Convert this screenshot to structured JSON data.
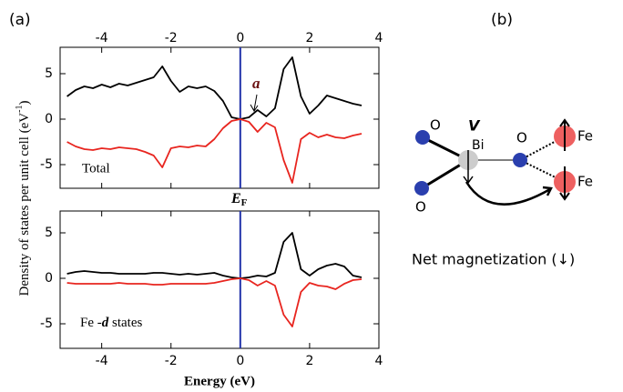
{
  "panel_labels": [
    "(a)",
    "(b)"
  ],
  "chart_data": [
    {
      "type": "line",
      "ylabel": [
        "Density of states per unit cell (eV",
        "-1",
        ")"
      ],
      "annotations": [
        "Total",
        "a"
      ],
      "ef_label": [
        "E",
        "F"
      ],
      "xtick_labels": "top",
      "vline": 0,
      "vline_color": "#2233aa",
      "x": [
        -5,
        -4.75,
        -4.5,
        -4.25,
        -4,
        -3.75,
        -3.5,
        -3.25,
        -3,
        -2.75,
        -2.5,
        -2.25,
        -2,
        -1.75,
        -1.5,
        -1.25,
        -1,
        -0.75,
        -0.5,
        -0.25,
        0,
        0.25,
        0.5,
        0.75,
        1,
        1.25,
        1.5,
        1.75,
        2,
        2.25,
        2.5,
        2.75,
        3,
        3.25,
        3.5
      ],
      "series": [
        {
          "color": "#000000",
          "values": [
            2.5,
            3.2,
            3.6,
            3.4,
            3.8,
            3.5,
            3.9,
            3.7,
            4.0,
            4.3,
            4.6,
            5.8,
            4.2,
            3.0,
            3.6,
            3.4,
            3.6,
            3.1,
            2.0,
            0.2,
            0,
            0.2,
            1.0,
            0.3,
            1.2,
            5.5,
            6.8,
            2.5,
            0.6,
            1.5,
            2.6,
            2.3,
            2.0,
            1.7,
            1.5
          ]
        },
        {
          "color": "#e8251f",
          "values": [
            -2.5,
            -3.0,
            -3.3,
            -3.4,
            -3.2,
            -3.3,
            -3.1,
            -3.2,
            -3.3,
            -3.6,
            -4.0,
            -5.3,
            -3.2,
            -3.0,
            -3.1,
            -2.9,
            -3.0,
            -2.2,
            -1.0,
            -0.2,
            0,
            -0.3,
            -1.4,
            -0.4,
            -0.9,
            -4.5,
            -7.0,
            -2.2,
            -1.5,
            -2.0,
            -1.7,
            -2.0,
            -2.1,
            -1.8,
            -1.6
          ]
        }
      ],
      "xlim": [
        -5.2,
        4
      ],
      "xticks": [
        -4,
        -2,
        0,
        2,
        4
      ],
      "ylim": [
        -7.6,
        7.9
      ],
      "yticks": [
        -5,
        0,
        5
      ]
    },
    {
      "type": "line",
      "xlabel": "Energy (eV)",
      "annotations": [
        [
          "Fe -",
          "d",
          " states"
        ]
      ],
      "xtick_labels": "bottom",
      "vline": 0,
      "vline_color": "#2233aa",
      "x": [
        -5,
        -4.75,
        -4.5,
        -4.25,
        -4,
        -3.75,
        -3.5,
        -3.25,
        -3,
        -2.75,
        -2.5,
        -2.25,
        -2,
        -1.75,
        -1.5,
        -1.25,
        -1,
        -0.75,
        -0.5,
        -0.25,
        0,
        0.25,
        0.5,
        0.75,
        1,
        1.25,
        1.5,
        1.75,
        2,
        2.25,
        2.5,
        2.75,
        3,
        3.25,
        3.5
      ],
      "series": [
        {
          "color": "#000000",
          "values": [
            0.5,
            0.7,
            0.8,
            0.7,
            0.6,
            0.6,
            0.5,
            0.5,
            0.5,
            0.5,
            0.6,
            0.6,
            0.5,
            0.4,
            0.5,
            0.4,
            0.5,
            0.6,
            0.3,
            0.1,
            0,
            0.1,
            0.3,
            0.2,
            0.6,
            4.0,
            5.0,
            1.0,
            0.3,
            1.0,
            1.4,
            1.6,
            1.3,
            0.3,
            0.1
          ]
        },
        {
          "color": "#e8251f",
          "values": [
            -0.5,
            -0.6,
            -0.6,
            -0.6,
            -0.6,
            -0.6,
            -0.5,
            -0.6,
            -0.6,
            -0.6,
            -0.7,
            -0.7,
            -0.6,
            -0.6,
            -0.6,
            -0.6,
            -0.6,
            -0.5,
            -0.3,
            -0.1,
            0,
            -0.2,
            -0.8,
            -0.3,
            -0.8,
            -4.0,
            -5.3,
            -1.5,
            -0.5,
            -0.8,
            -0.9,
            -1.2,
            -0.6,
            -0.2,
            -0.1
          ]
        }
      ],
      "xlim": [
        -5.2,
        4
      ],
      "xticks": [
        -4,
        -2,
        0,
        2,
        4
      ],
      "ylim": [
        -7.7,
        7.4
      ],
      "yticks": [
        -5,
        0,
        5
      ]
    }
  ],
  "diagram": {
    "labels": [
      "O",
      "O",
      "V",
      "Bi",
      "O",
      "Fe",
      "Fe"
    ],
    "caption": "Net magnetization (↓)"
  }
}
